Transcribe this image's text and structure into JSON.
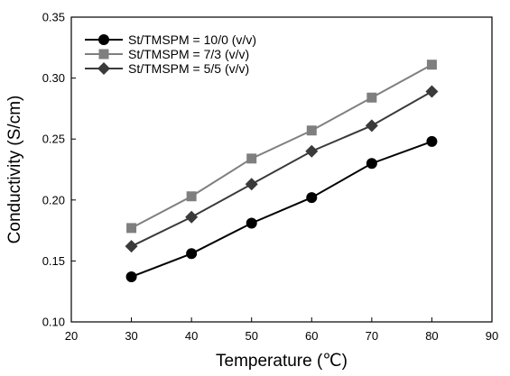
{
  "chart_data": {
    "type": "line",
    "xlabel": "Temperature (℃)",
    "ylabel": "Conductivity (S/cm)",
    "xlim": [
      20,
      90
    ],
    "ylim": [
      0.1,
      0.35
    ],
    "xticks": [
      "20",
      "30",
      "40",
      "50",
      "60",
      "70",
      "80",
      "90"
    ],
    "yticks": [
      "0.10",
      "0.15",
      "0.20",
      "0.25",
      "0.30",
      "0.35"
    ],
    "x": [
      30,
      40,
      50,
      60,
      70,
      80
    ],
    "grid": false,
    "legend_position": "top-left",
    "series": [
      {
        "name": "St/TMSPM = 10/0 (v/v)",
        "marker": "circle",
        "color": "#000000",
        "values": [
          0.137,
          0.156,
          0.181,
          0.202,
          0.23,
          0.248
        ]
      },
      {
        "name": "St/TMSPM = 7/3 (v/v)",
        "marker": "square",
        "color": "#7f7f7f",
        "values": [
          0.177,
          0.203,
          0.234,
          0.257,
          0.284,
          0.311
        ]
      },
      {
        "name": "St/TMSPM = 5/5 (v/v)",
        "marker": "diamond",
        "color": "#3a3a3a",
        "values": [
          0.162,
          0.186,
          0.213,
          0.24,
          0.261,
          0.289
        ]
      }
    ]
  }
}
